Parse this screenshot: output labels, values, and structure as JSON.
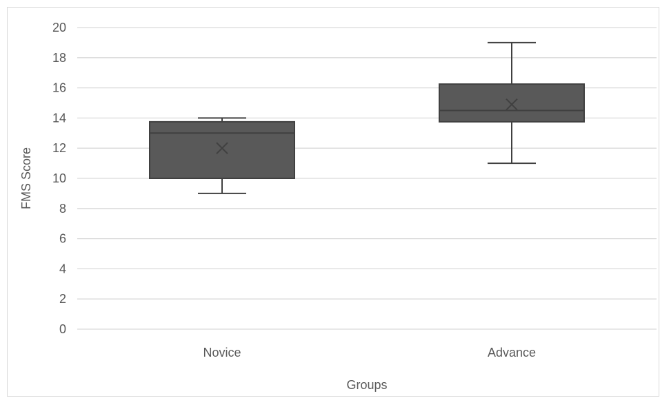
{
  "chart_data": {
    "type": "boxplot",
    "title": "",
    "xlabel": "Groups",
    "ylabel": "FMS Score",
    "ylim": [
      0,
      20
    ],
    "y_ticks": [
      0,
      2,
      4,
      6,
      8,
      10,
      12,
      14,
      16,
      18,
      20
    ],
    "grid": "horizontal",
    "categories": [
      "Novice",
      "Advance"
    ],
    "boxes": [
      {
        "category": "Novice",
        "min": 9,
        "q1": 10,
        "median": 13,
        "q3": 13.75,
        "max": 14,
        "mean": 12
      },
      {
        "category": "Advance",
        "min": 11,
        "q1": 13.75,
        "median": 14.5,
        "q3": 16.25,
        "max": 19,
        "mean": 14.9
      }
    ],
    "colors": {
      "box_fill": "#595959",
      "box_stroke": "#404040",
      "grid": "#d9d9d9",
      "text": "#595959"
    }
  }
}
